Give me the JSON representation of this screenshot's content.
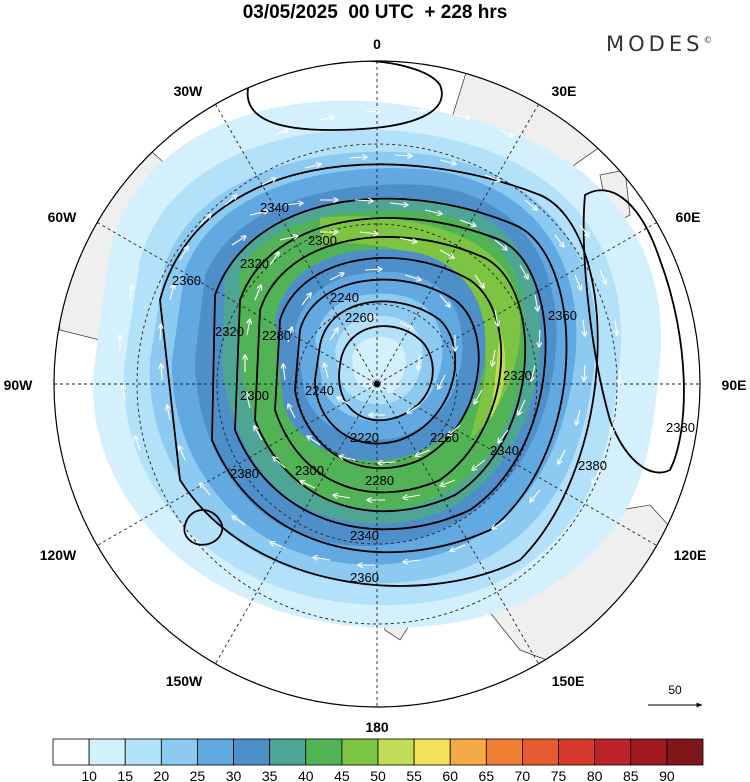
{
  "header": {
    "title": "03/05/2025  00 UTC  + 228 hrs",
    "brand": "MODES"
  },
  "map": {
    "projection": "south-polar-stereographic",
    "meridian_labels": [
      {
        "text": "0",
        "name": "meridian-0"
      },
      {
        "text": "30E",
        "name": "meridian-30e"
      },
      {
        "text": "60E",
        "name": "meridian-60e"
      },
      {
        "text": "90E",
        "name": "meridian-90e"
      },
      {
        "text": "120E",
        "name": "meridian-120e"
      },
      {
        "text": "150E",
        "name": "meridian-150e"
      },
      {
        "text": "180",
        "name": "meridian-180"
      },
      {
        "text": "150W",
        "name": "meridian-150w"
      },
      {
        "text": "120W",
        "name": "meridian-120w"
      },
      {
        "text": "90W",
        "name": "meridian-90w"
      },
      {
        "text": "60W",
        "name": "meridian-60w"
      },
      {
        "text": "30W",
        "name": "meridian-30w"
      }
    ],
    "contour_labels": [
      "2340",
      "2300",
      "2320",
      "2360",
      "2320",
      "2280",
      "2240",
      "2260",
      "2240",
      "2300",
      "2220",
      "2260",
      "2360",
      "2380",
      "2320",
      "2340",
      "2280",
      "2300",
      "2340",
      "2380",
      "2360",
      "2380"
    ],
    "wind_reference": {
      "label": "50"
    }
  },
  "colorbar": {
    "colors": [
      "#ffffff",
      "#d4f0fc",
      "#b4e1fa",
      "#8dcaf2",
      "#62a9e2",
      "#4f8fc9",
      "#4fa593",
      "#52b356",
      "#7dc443",
      "#c3dc55",
      "#f6e15a",
      "#f5ab44",
      "#ef7f33",
      "#e85a2f",
      "#d8382c",
      "#bc2228",
      "#a11a22",
      "#7e161a"
    ],
    "labels": [
      "10",
      "15",
      "20",
      "25",
      "30",
      "35",
      "40",
      "45",
      "50",
      "55",
      "60",
      "65",
      "70",
      "75",
      "80",
      "85",
      "90"
    ]
  }
}
